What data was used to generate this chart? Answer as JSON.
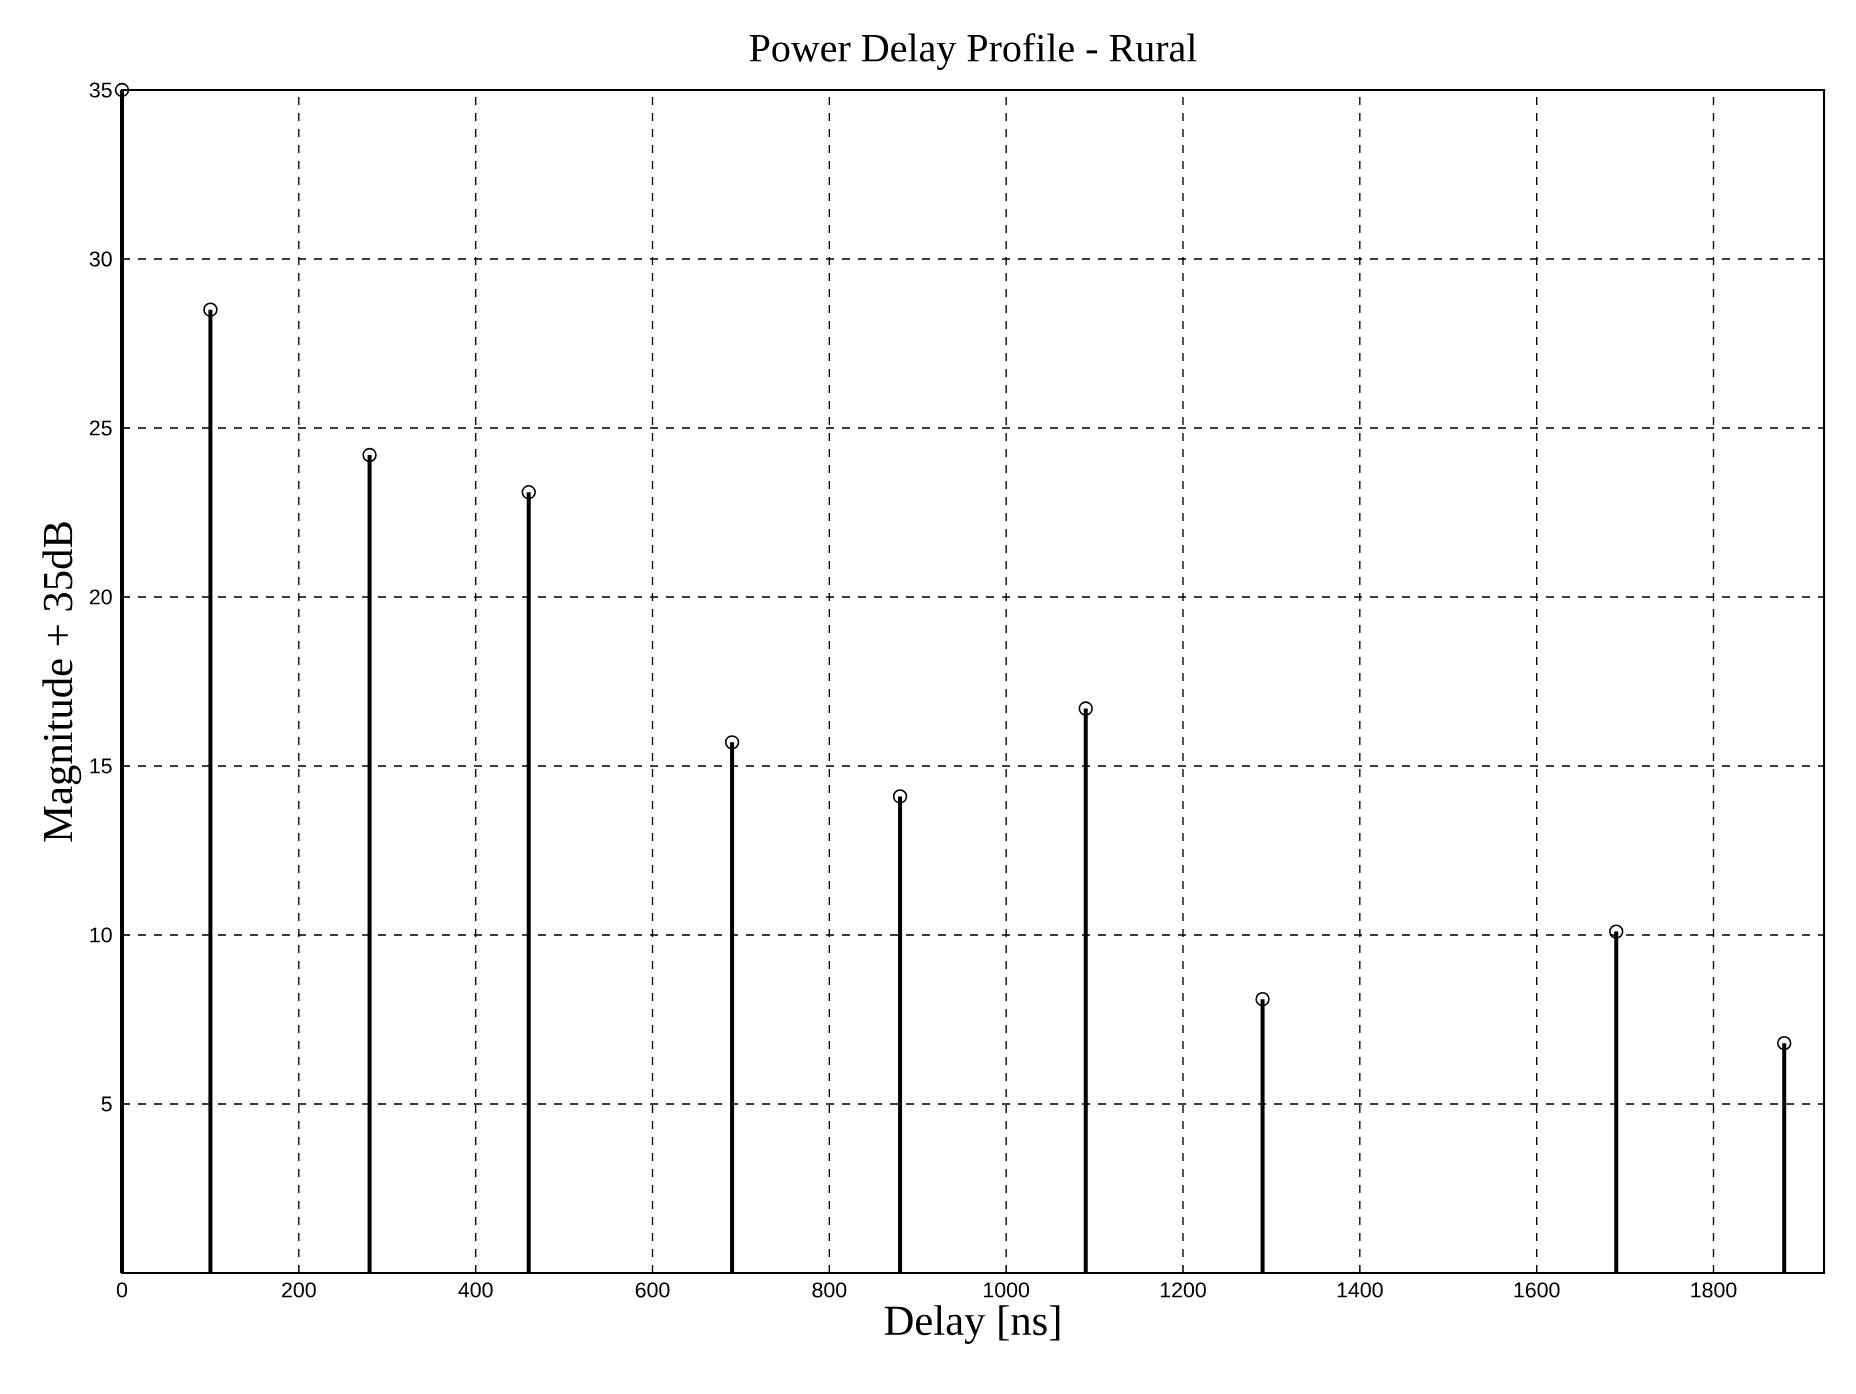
{
  "chart_data": {
    "type": "lollipop",
    "title": "Power Delay Profile -  Rural",
    "xlabel": "Delay [ns]",
    "ylabel": "Magnitude + 35dB",
    "x": [
      0,
      100,
      280,
      460,
      690,
      880,
      1090,
      1290,
      1690,
      1880
    ],
    "values": [
      35,
      28.5,
      24.2,
      23.1,
      15.7,
      14.1,
      16.7,
      8.1,
      10.1,
      6.8
    ],
    "color": "#000000",
    "marker": "circle",
    "grid": true,
    "xlim": [
      0,
      1925
    ],
    "ylim": [
      0,
      35
    ],
    "xticks": [
      0,
      200,
      400,
      600,
      800,
      1000,
      1200,
      1400,
      1600,
      1800
    ],
    "yticks": [
      5,
      10,
      15,
      20,
      25,
      30,
      35
    ]
  }
}
